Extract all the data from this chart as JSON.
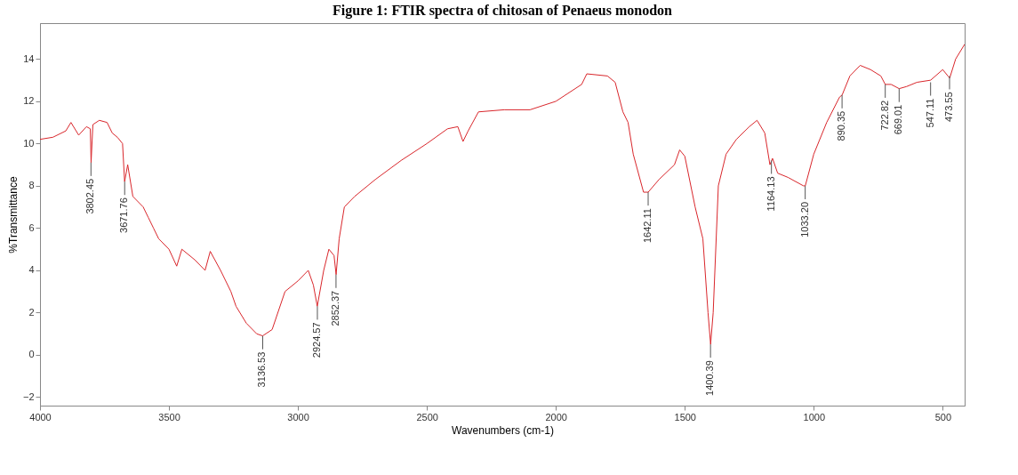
{
  "chart_data": {
    "type": "line",
    "title": "Figure 1: FTIR spectra of chitosan of Penaeus monodon",
    "xlabel": "Wavenumbers (cm-1)",
    "ylabel": "%Transmittance",
    "xlim": [
      4000,
      415
    ],
    "ylim": [
      -2.4,
      15.7
    ],
    "xticks": [
      4000,
      3500,
      3000,
      2500,
      2000,
      1500,
      1000,
      500
    ],
    "yticks": [
      -2,
      0,
      2,
      4,
      6,
      8,
      10,
      12,
      14
    ],
    "grid": false,
    "marker": "none",
    "line_style": "solid",
    "series": [
      {
        "color": "#d9262b",
        "x": [
          4000,
          3950,
          3900,
          3880,
          3850,
          3820,
          3805,
          3802,
          3795,
          3770,
          3740,
          3720,
          3700,
          3680,
          3672,
          3660,
          3640,
          3600,
          3580,
          3560,
          3540,
          3500,
          3470,
          3450,
          3400,
          3360,
          3340,
          3300,
          3260,
          3240,
          3200,
          3160,
          3137,
          3100,
          3050,
          3000,
          2960,
          2940,
          2925,
          2900,
          2880,
          2860,
          2852,
          2840,
          2820,
          2780,
          2700,
          2600,
          2500,
          2420,
          2380,
          2360,
          2340,
          2300,
          2200,
          2100,
          2000,
          1900,
          1880,
          1800,
          1770,
          1740,
          1720,
          1700,
          1660,
          1642,
          1600,
          1540,
          1520,
          1500,
          1460,
          1430,
          1410,
          1400,
          1390,
          1370,
          1340,
          1300,
          1250,
          1220,
          1190,
          1170,
          1160,
          1140,
          1100,
          1040,
          1033,
          1000,
          950,
          900,
          890,
          860,
          820,
          780,
          740,
          723,
          700,
          669,
          640,
          600,
          547,
          500,
          480,
          473,
          450,
          415
        ],
        "values": [
          10.2,
          10.3,
          10.6,
          11.0,
          10.4,
          10.8,
          10.7,
          9.1,
          10.9,
          11.1,
          11.0,
          10.5,
          10.3,
          10.0,
          8.2,
          9.0,
          7.5,
          7.0,
          6.5,
          6.0,
          5.5,
          5.0,
          4.2,
          5.0,
          4.5,
          4.0,
          4.9,
          4.0,
          3.0,
          2.3,
          1.5,
          1.0,
          0.9,
          1.2,
          3.0,
          3.5,
          4.0,
          3.3,
          2.3,
          4.0,
          5.0,
          4.7,
          3.8,
          5.5,
          7.0,
          7.5,
          8.3,
          9.2,
          10.0,
          10.7,
          10.8,
          10.1,
          10.6,
          11.5,
          11.6,
          11.6,
          12.0,
          12.8,
          13.3,
          13.2,
          12.9,
          11.5,
          11.0,
          9.5,
          7.7,
          7.7,
          8.3,
          9.0,
          9.7,
          9.4,
          7.0,
          5.5,
          2.0,
          0.5,
          2.0,
          8.0,
          9.5,
          10.2,
          10.8,
          11.1,
          10.5,
          9.0,
          9.3,
          8.6,
          8.4,
          8.0,
          8.0,
          9.5,
          11.0,
          12.2,
          12.3,
          13.2,
          13.7,
          13.5,
          13.2,
          12.8,
          12.8,
          12.6,
          12.7,
          12.9,
          13.0,
          13.5,
          13.2,
          13.1,
          14.0,
          14.7
        ]
      }
    ],
    "annotations": [
      {
        "text": "3802.45",
        "x": 3802.45,
        "y": 9.1
      },
      {
        "text": "3671.76",
        "x": 3671.76,
        "y": 8.2
      },
      {
        "text": "3136.53",
        "x": 3136.53,
        "y": 0.9
      },
      {
        "text": "2924.57",
        "x": 2924.57,
        "y": 2.3
      },
      {
        "text": "2852.37",
        "x": 2852.37,
        "y": 3.8
      },
      {
        "text": "1642.11",
        "x": 1642.11,
        "y": 7.7
      },
      {
        "text": "1400.39",
        "x": 1400.39,
        "y": 0.5
      },
      {
        "text": "1164.13",
        "x": 1164.13,
        "y": 9.2
      },
      {
        "text": "1033.20",
        "x": 1033.2,
        "y": 8.0
      },
      {
        "text": "890.35",
        "x": 890.35,
        "y": 12.3
      },
      {
        "text": "722.82",
        "x": 722.82,
        "y": 12.8
      },
      {
        "text": "669.01",
        "x": 669.01,
        "y": 12.6
      },
      {
        "text": "547.11",
        "x": 547.11,
        "y": 12.9
      },
      {
        "text": "473.55",
        "x": 473.55,
        "y": 13.2
      }
    ]
  }
}
